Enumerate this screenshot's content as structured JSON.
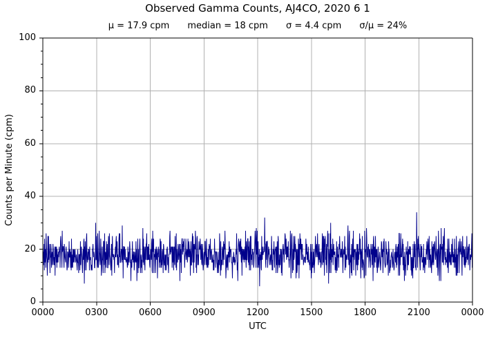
{
  "chart_data": {
    "type": "line",
    "title": "Observed Gamma Counts, AJ4CO, 2020 6 1",
    "stats_line": {
      "mu": "μ = 17.9 cpm",
      "median": "median = 18 cpm",
      "sigma": "σ = 4.4 cpm",
      "sigma_over_mu": "σ/μ = 24%"
    },
    "xlabel": "UTC",
    "ylabel": "Counts per Minute (cpm)",
    "xlim_minutes": [
      0,
      1440
    ],
    "ylim": [
      0,
      100
    ],
    "x_ticks": {
      "labels": [
        "0000",
        "0300",
        "0600",
        "0900",
        "1200",
        "1500",
        "1800",
        "2100",
        "0000"
      ],
      "minutes": [
        0,
        180,
        360,
        540,
        720,
        900,
        1080,
        1260,
        1440
      ]
    },
    "y_ticks": {
      "labels": [
        0,
        20,
        40,
        60,
        80,
        100
      ],
      "minor_step": 5
    },
    "grid": true,
    "legend_position": "none",
    "series": [
      {
        "name": "observed-gamma-counts",
        "color": "#00008b",
        "n_points": 1440,
        "cadence": "1 sample per minute",
        "distribution": "poisson",
        "mean_cpm": 17.9,
        "median_cpm": 18,
        "sigma_cpm": 4.4,
        "sigma_over_mu_pct": 24,
        "observed_min_cpm": 7,
        "observed_max_cpm": 33,
        "seed": 20200601
      }
    ],
    "colors": {
      "line": "#00008b",
      "grid": "#b0b0b0",
      "axes": "#000000",
      "background": "#ffffff"
    }
  }
}
